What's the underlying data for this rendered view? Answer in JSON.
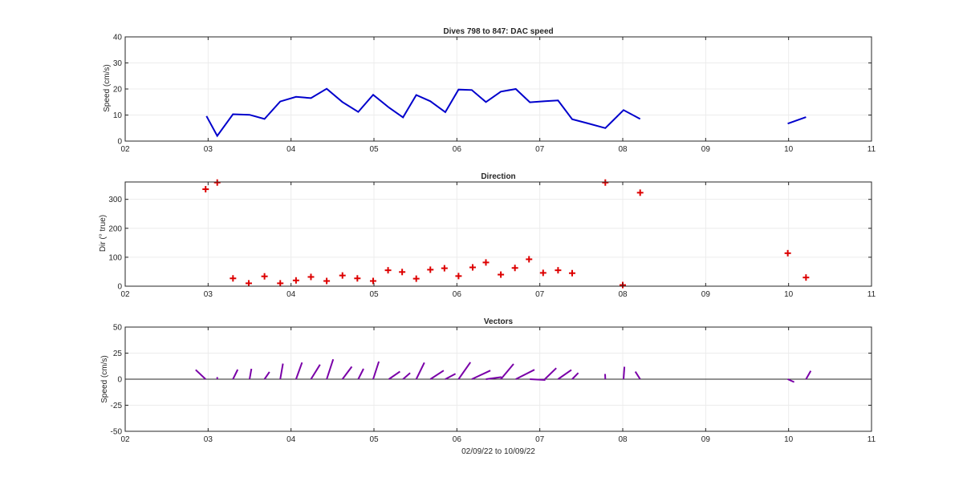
{
  "chart_data": [
    {
      "type": "line",
      "title": "Dives 798 to 847: DAC speed",
      "ylabel": "Speed (cm/s)",
      "xlabel": "",
      "xlim": [
        2,
        11
      ],
      "ylim": [
        0,
        40
      ],
      "xticks": [
        2,
        3,
        4,
        5,
        6,
        7,
        8,
        9,
        10,
        11
      ],
      "xtick_labels": [
        "02",
        "03",
        "04",
        "05",
        "06",
        "07",
        "08",
        "09",
        "10",
        "11"
      ],
      "yticks": [
        0,
        10,
        20,
        30,
        40
      ],
      "grid": true,
      "color": "#0000cc",
      "series": [
        {
          "x": [
            2.98,
            3.11,
            3.3,
            3.5,
            3.68,
            3.87,
            4.06,
            4.24,
            4.43,
            4.62,
            4.81,
            4.99,
            5.18,
            5.35,
            5.51,
            5.68,
            5.86,
            6.02,
            6.18,
            6.35,
            6.53,
            6.71,
            6.88,
            7.06,
            7.22,
            7.39,
            7.57,
            7.79,
            8.01,
            8.21
          ],
          "y": [
            9.6,
            2.0,
            10.3,
            10.1,
            8.5,
            15.2,
            17.0,
            16.5,
            20.1,
            15.0,
            11.2,
            17.8,
            12.9,
            9.1,
            17.7,
            15.3,
            11.1,
            19.8,
            19.6,
            15.0,
            19.0,
            20.0,
            14.9,
            15.3,
            15.6,
            8.4,
            6.9,
            5.0,
            11.9,
            8.5
          ]
        },
        {
          "x": [
            9.99,
            10.21
          ],
          "y": [
            6.7,
            9.2
          ]
        }
      ]
    },
    {
      "type": "scatter",
      "title": "Direction",
      "ylabel": "Dir (° true)",
      "xlabel": "",
      "xlim": [
        2,
        11
      ],
      "ylim": [
        0,
        360
      ],
      "xticks": [
        2,
        3,
        4,
        5,
        6,
        7,
        8,
        9,
        10,
        11
      ],
      "xtick_labels": [
        "02",
        "03",
        "04",
        "05",
        "06",
        "07",
        "08",
        "09",
        "10",
        "11"
      ],
      "yticks": [
        0,
        100,
        200,
        300
      ],
      "grid": true,
      "marker": "+",
      "color": "#dd0000",
      "series": [
        {
          "x": [
            2.97,
            3.11,
            3.3,
            3.49,
            3.68,
            3.87,
            4.06,
            4.24,
            4.43,
            4.62,
            4.8,
            4.99,
            5.17,
            5.34,
            5.51,
            5.68,
            5.85,
            6.02,
            6.19,
            6.35,
            6.53,
            6.7,
            6.87,
            7.04,
            7.22,
            7.39,
            7.79,
            8.0,
            8.21,
            9.99,
            10.21
          ],
          "y": [
            335,
            358,
            27,
            10,
            34,
            10,
            20,
            32,
            18,
            37,
            27,
            18,
            55,
            49,
            26,
            57,
            62,
            35,
            65,
            82,
            40,
            63,
            93,
            46,
            55,
            45,
            358,
            4,
            323,
            114,
            30
          ]
        }
      ]
    },
    {
      "type": "vector",
      "title": "Vectors",
      "ylabel": "Speed (cm/s)",
      "xlabel": "02/09/22 to 10/09/22",
      "xlim": [
        2,
        11
      ],
      "ylim": [
        -50,
        50
      ],
      "xticks": [
        2,
        3,
        4,
        5,
        6,
        7,
        8,
        9,
        10,
        11
      ],
      "xtick_labels": [
        "02",
        "03",
        "04",
        "05",
        "06",
        "07",
        "08",
        "09",
        "10",
        "11"
      ],
      "yticks": [
        -50,
        -25,
        0,
        25,
        50
      ],
      "grid": true,
      "color": "#7a00a8",
      "vectors": [
        {
          "x": 2.97,
          "u": -9.6,
          "v": 9.0
        },
        {
          "x": 3.11,
          "u": 0.0,
          "v": 2.0
        },
        {
          "x": 3.3,
          "u": 4.5,
          "v": 9.2
        },
        {
          "x": 3.5,
          "u": 1.8,
          "v": 9.9
        },
        {
          "x": 3.68,
          "u": 4.8,
          "v": 7.0
        },
        {
          "x": 3.87,
          "u": 2.6,
          "v": 14.9
        },
        {
          "x": 4.06,
          "u": 5.8,
          "v": 16.0
        },
        {
          "x": 4.24,
          "u": 8.7,
          "v": 14.0
        },
        {
          "x": 4.43,
          "u": 6.2,
          "v": 19.1
        },
        {
          "x": 4.62,
          "u": 9.0,
          "v": 12.0
        },
        {
          "x": 4.81,
          "u": 5.1,
          "v": 10.0
        },
        {
          "x": 4.99,
          "u": 5.5,
          "v": 16.9
        },
        {
          "x": 5.18,
          "u": 10.6,
          "v": 7.4
        },
        {
          "x": 5.35,
          "u": 6.9,
          "v": 6.0
        },
        {
          "x": 5.51,
          "u": 7.8,
          "v": 15.9
        },
        {
          "x": 5.68,
          "u": 12.8,
          "v": 8.3
        },
        {
          "x": 5.86,
          "u": 9.8,
          "v": 5.2
        },
        {
          "x": 6.02,
          "u": 11.4,
          "v": 16.2
        },
        {
          "x": 6.18,
          "u": 17.8,
          "v": 8.3
        },
        {
          "x": 6.35,
          "u": 14.9,
          "v": 2.0
        },
        {
          "x": 6.53,
          "u": 12.2,
          "v": 14.6
        },
        {
          "x": 6.71,
          "u": 17.9,
          "v": 9.1
        },
        {
          "x": 6.88,
          "u": 14.9,
          "v": -0.8
        },
        {
          "x": 7.06,
          "u": 11.0,
          "v": 10.6
        },
        {
          "x": 7.22,
          "u": 12.8,
          "v": 8.9
        },
        {
          "x": 7.39,
          "u": 5.9,
          "v": 6.0
        },
        {
          "x": 7.79,
          "u": -0.2,
          "v": 5.0
        },
        {
          "x": 8.01,
          "u": 0.8,
          "v": 11.9
        },
        {
          "x": 8.21,
          "u": -4.6,
          "v": 7.2
        },
        {
          "x": 9.99,
          "u": 6.1,
          "v": -2.8
        },
        {
          "x": 10.21,
          "u": 4.6,
          "v": 8.0
        }
      ]
    }
  ]
}
